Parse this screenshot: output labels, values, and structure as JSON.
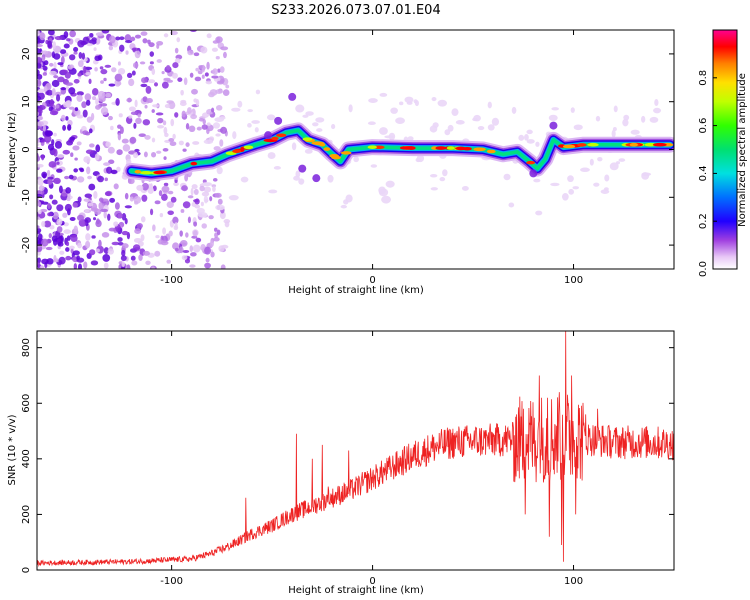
{
  "title": "S233.2026.073.07.01.E04",
  "chart_data": [
    {
      "type": "heatmap",
      "name": "spectrogram",
      "xlabel": "Height of straight line (km)",
      "ylabel": "Frequency (Hz)",
      "xlim": [
        -167,
        150
      ],
      "ylim": [
        -25,
        25
      ],
      "xticks": [
        -100,
        0,
        100
      ],
      "yticks": [
        -20,
        -10,
        0,
        10,
        20
      ],
      "colorbar": {
        "label": "Normalized spectral amplitude",
        "range": [
          0,
          1
        ],
        "ticks": [
          0.0,
          0.2,
          0.4,
          0.6,
          0.8
        ]
      },
      "ridge": [
        {
          "x": -120,
          "y": -4.5
        },
        {
          "x": -110,
          "y": -5
        },
        {
          "x": -100,
          "y": -4.5
        },
        {
          "x": -90,
          "y": -3
        },
        {
          "x": -80,
          "y": -2.5
        },
        {
          "x": -72,
          "y": -1
        },
        {
          "x": -65,
          "y": 0
        },
        {
          "x": -58,
          "y": 1
        },
        {
          "x": -50,
          "y": 2
        },
        {
          "x": -43,
          "y": 3.5
        },
        {
          "x": -37,
          "y": 4
        },
        {
          "x": -32,
          "y": 2
        },
        {
          "x": -25,
          "y": 1
        },
        {
          "x": -20,
          "y": -1
        },
        {
          "x": -16,
          "y": -2.5
        },
        {
          "x": -12,
          "y": 0
        },
        {
          "x": 0,
          "y": 0.5
        },
        {
          "x": 20,
          "y": 0.3
        },
        {
          "x": 40,
          "y": 0.3
        },
        {
          "x": 55,
          "y": 0
        },
        {
          "x": 65,
          "y": -1
        },
        {
          "x": 72,
          "y": -0.5
        },
        {
          "x": 78,
          "y": -2.5
        },
        {
          "x": 82,
          "y": -4
        },
        {
          "x": 86,
          "y": -2
        },
        {
          "x": 90,
          "y": 2
        },
        {
          "x": 95,
          "y": 0.5
        },
        {
          "x": 105,
          "y": 1
        },
        {
          "x": 120,
          "y": 1
        },
        {
          "x": 148,
          "y": 1
        }
      ]
    },
    {
      "type": "line",
      "name": "snr",
      "xlabel": "Height of straight line (km)",
      "ylabel": "SNR (10 * v/v)",
      "xlim": [
        -167,
        150
      ],
      "ylim": [
        0,
        860
      ],
      "xticks": [
        -100,
        0,
        100
      ],
      "yticks": [
        0,
        200,
        400,
        600,
        800
      ],
      "envelope": [
        {
          "x": -167,
          "y": 25
        },
        {
          "x": -120,
          "y": 30
        },
        {
          "x": -90,
          "y": 40
        },
        {
          "x": -80,
          "y": 60
        },
        {
          "x": -70,
          "y": 90
        },
        {
          "x": -60,
          "y": 130
        },
        {
          "x": -50,
          "y": 160
        },
        {
          "x": -40,
          "y": 200
        },
        {
          "x": -30,
          "y": 230
        },
        {
          "x": -20,
          "y": 260
        },
        {
          "x": -10,
          "y": 290
        },
        {
          "x": 0,
          "y": 330
        },
        {
          "x": 10,
          "y": 370
        },
        {
          "x": 20,
          "y": 410
        },
        {
          "x": 30,
          "y": 440
        },
        {
          "x": 40,
          "y": 460
        },
        {
          "x": 55,
          "y": 465
        },
        {
          "x": 70,
          "y": 470
        },
        {
          "x": 80,
          "y": 470
        },
        {
          "x": 90,
          "y": 480
        },
        {
          "x": 100,
          "y": 480
        },
        {
          "x": 110,
          "y": 470
        },
        {
          "x": 120,
          "y": 460
        },
        {
          "x": 135,
          "y": 460
        },
        {
          "x": 150,
          "y": 455
        }
      ],
      "spikes": [
        {
          "x": -63,
          "y": 260
        },
        {
          "x": -38,
          "y": 490
        },
        {
          "x": -30,
          "y": 400
        },
        {
          "x": -25,
          "y": 450
        },
        {
          "x": -22,
          "y": 300
        },
        {
          "x": -12,
          "y": 430
        },
        {
          "x": 75,
          "y": 580
        },
        {
          "x": 76,
          "y": 200
        },
        {
          "x": 83,
          "y": 700
        },
        {
          "x": 87,
          "y": 620
        },
        {
          "x": 88,
          "y": 120
        },
        {
          "x": 93,
          "y": 640
        },
        {
          "x": 94,
          "y": 90
        },
        {
          "x": 96,
          "y": 860
        },
        {
          "x": 95,
          "y": 30
        },
        {
          "x": 99,
          "y": 700
        },
        {
          "x": 101,
          "y": 200
        },
        {
          "x": 106,
          "y": 560
        },
        {
          "x": 112,
          "y": 580
        }
      ]
    }
  ]
}
